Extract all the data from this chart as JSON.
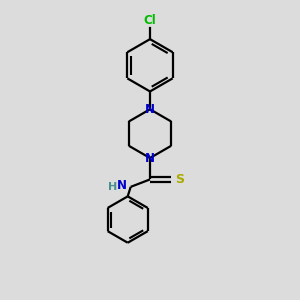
{
  "background_color": "#dcdcdc",
  "bond_color": "#000000",
  "N_color": "#0000cc",
  "Cl_color": "#00bb00",
  "S_color": "#aaaa00",
  "H_color": "#4a9090",
  "line_width": 1.6,
  "font_size": 8.5,
  "figsize": [
    3.0,
    3.0
  ],
  "dpi": 100,
  "xlim": [
    0,
    10
  ],
  "ylim": [
    0,
    10
  ]
}
